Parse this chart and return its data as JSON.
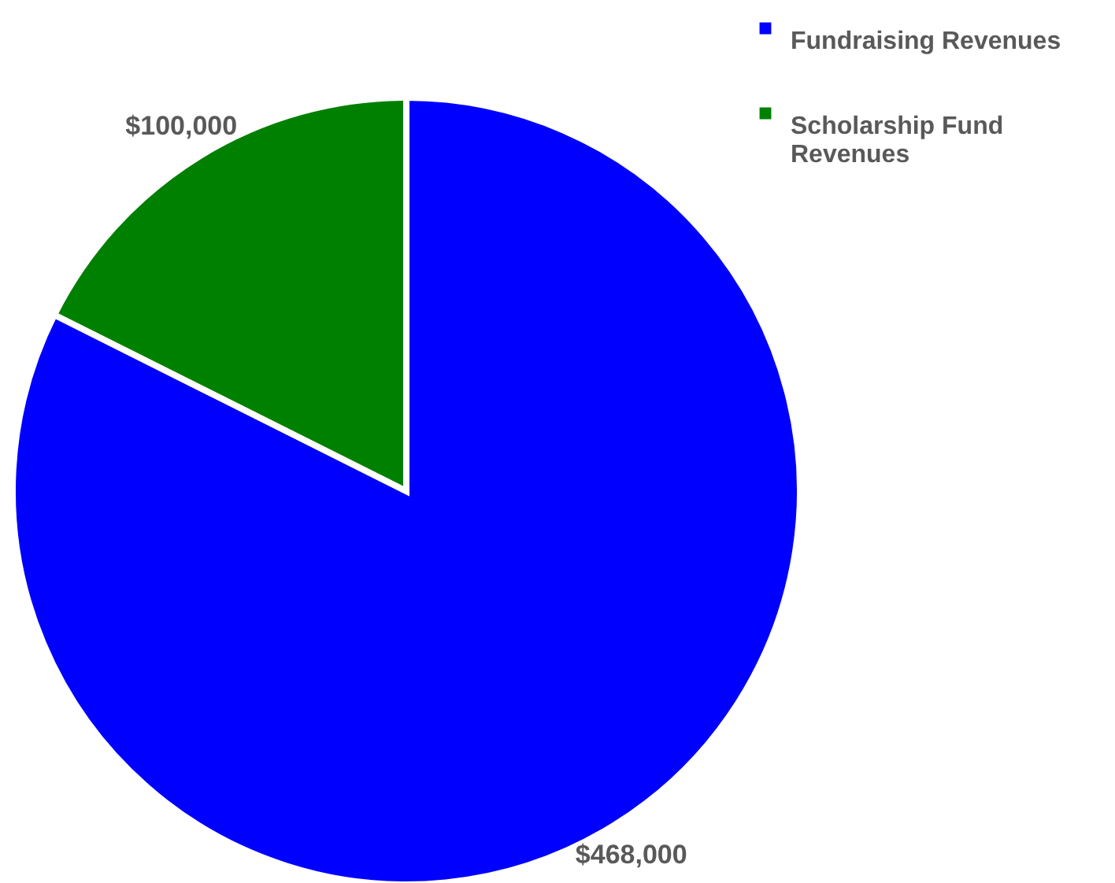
{
  "chart_data": {
    "type": "pie",
    "categories": [
      "Fundraising Revenues",
      "Scholarship Fund Revenues"
    ],
    "values": [
      468000,
      100000
    ],
    "colors": [
      "#0000ff",
      "#008000"
    ],
    "value_labels": [
      "$468,000",
      "$100,000"
    ],
    "legend": "top right"
  }
}
